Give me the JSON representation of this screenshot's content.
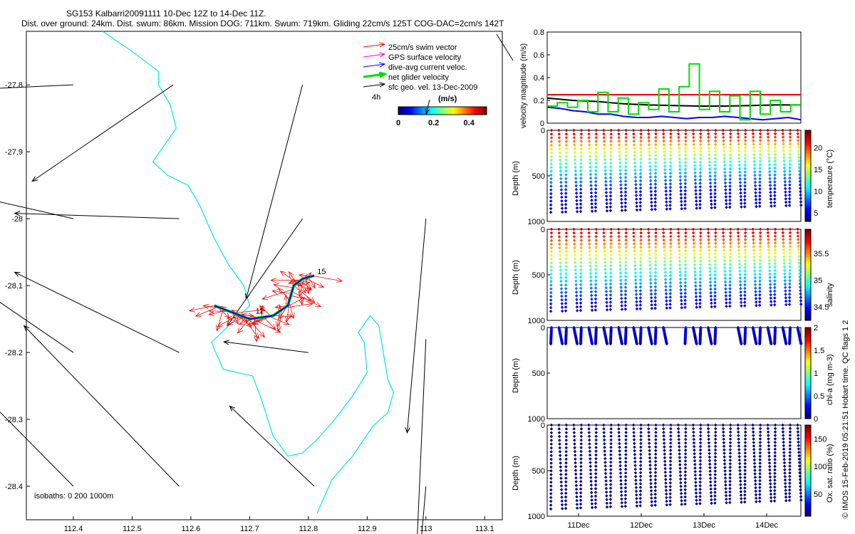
{
  "header": {
    "line1": "SG153 Kalbarri20091111 10-Dec 12Z to 14-Dec 11Z.",
    "line2": "Dist. over ground: 24km. Dist. swum: 86km. Mission DOG: 711km. Swum: 719km. Gliding 22cm/s 125T COG-DAC=2cm/s 142T"
  },
  "side_note": "© IMOS 15-Feb-2019 05:21:51 Hobart time. QC flags 1 2",
  "chart_data": [
    {
      "type": "map",
      "x_ticks": [
        "112.4",
        "112.5",
        "112.6",
        "112.7",
        "112.8",
        "112.9",
        "113",
        "113.1"
      ],
      "y_ticks": [
        "-27.8",
        "-27.9",
        "-28",
        "-28.1",
        "-28.2",
        "-28.3",
        "-28.4"
      ],
      "xlim": [
        112.32,
        113.13
      ],
      "ylim": [
        -28.45,
        -27.72
      ],
      "legend": [
        {
          "label": "25cm/s swim vector",
          "color": "#ff0000"
        },
        {
          "label": "GPS surface velocity",
          "color": "#ff00ff"
        },
        {
          "label": "dive-avg current veloc.",
          "color": "#0000ff"
        },
        {
          "label": "net glider velocity",
          "color": "#00dd00"
        },
        {
          "label": "sfc geo. vel. 13-Dec-2009",
          "color": "#000000"
        }
      ],
      "time_label": "4h",
      "colorbar": {
        "title": "(m/s)",
        "ticks": [
          "0",
          "0.2",
          "0.4"
        ],
        "range": [
          0,
          0.5
        ]
      },
      "isobaths_label": "isobaths: 0   200  1000m",
      "track_labels": [
        "15",
        "11"
      ],
      "track": [
        [
          112.64,
          -28.13
        ],
        [
          112.67,
          -28.14
        ],
        [
          112.7,
          -28.15
        ],
        [
          112.74,
          -28.145
        ],
        [
          112.765,
          -28.13
        ],
        [
          112.775,
          -28.1
        ],
        [
          112.79,
          -28.09
        ],
        [
          112.81,
          -28.085
        ]
      ],
      "isobath_200": [
        [
          112.45,
          -27.72
        ],
        [
          112.5,
          -27.75
        ],
        [
          112.545,
          -27.78
        ],
        [
          112.545,
          -27.8
        ],
        [
          112.565,
          -27.83
        ],
        [
          112.575,
          -27.865
        ],
        [
          112.555,
          -27.89
        ],
        [
          112.535,
          -27.915
        ],
        [
          112.56,
          -27.935
        ],
        [
          112.595,
          -27.95
        ],
        [
          112.615,
          -27.98
        ],
        [
          112.64,
          -28.03
        ],
        [
          112.665,
          -28.07
        ],
        [
          112.69,
          -28.1
        ],
        [
          112.7,
          -28.13
        ],
        [
          112.67,
          -28.155
        ],
        [
          112.635,
          -28.185
        ],
        [
          112.655,
          -28.225
        ],
        [
          112.705,
          -28.235
        ],
        [
          112.72,
          -28.27
        ],
        [
          112.74,
          -28.325
        ],
        [
          112.765,
          -28.355
        ],
        [
          112.79,
          -28.35
        ],
        [
          112.815,
          -28.33
        ],
        [
          112.845,
          -28.3
        ],
        [
          112.875,
          -28.265
        ],
        [
          112.9,
          -28.23
        ],
        [
          112.895,
          -28.185
        ],
        [
          112.885,
          -28.17
        ],
        [
          112.905,
          -28.145
        ],
        [
          112.92,
          -28.16
        ],
        [
          112.935,
          -28.24
        ],
        [
          112.945,
          -28.26
        ],
        [
          112.935,
          -28.29
        ],
        [
          112.91,
          -28.31
        ],
        [
          112.875,
          -28.355
        ],
        [
          112.84,
          -28.39
        ],
        [
          112.815,
          -28.44
        ]
      ],
      "geo_vectors": [
        {
          "x": 112.4,
          "y": -27.8,
          "u": -0.05,
          "v": -0.002
        },
        {
          "x": 112.57,
          "y": -27.8,
          "u": -0.03,
          "v": -0.018
        },
        {
          "x": 112.79,
          "y": -27.8,
          "u": -0.012,
          "v": -0.04
        },
        {
          "x": 112.4,
          "y": -28.0,
          "u": -0.05,
          "v": 0.01
        },
        {
          "x": 112.58,
          "y": -28.0,
          "u": -0.035,
          "v": 0.001
        },
        {
          "x": 112.79,
          "y": -28.0,
          "u": -0.016,
          "v": -0.02
        },
        {
          "x": 113.0,
          "y": -28.0,
          "u": -0.004,
          "v": -0.04
        },
        {
          "x": 112.4,
          "y": -28.2,
          "u": -0.05,
          "v": 0.03
        },
        {
          "x": 112.58,
          "y": -28.2,
          "u": -0.035,
          "v": 0.015
        },
        {
          "x": 112.8,
          "y": -28.2,
          "u": -0.018,
          "v": 0.002
        },
        {
          "x": 113.0,
          "y": -28.18,
          "u": -0.002,
          "v": -0.04
        },
        {
          "x": 112.4,
          "y": -28.4,
          "u": -0.045,
          "v": 0.04
        },
        {
          "x": 112.58,
          "y": -28.4,
          "u": -0.033,
          "v": 0.03
        },
        {
          "x": 112.81,
          "y": -28.4,
          "u": -0.018,
          "v": 0.015
        },
        {
          "x": 113.0,
          "y": -28.4,
          "u": -0.001,
          "v": -0.01
        }
      ]
    },
    {
      "type": "line",
      "ylabel": "velocity magnitude (m/s)",
      "ylim": [
        0,
        0.8
      ],
      "y_ticks": [
        "0",
        "0.2",
        "0.4",
        "0.6",
        "0.8"
      ],
      "xlim": [
        0,
        1
      ],
      "series": [
        {
          "color": "#ff0000",
          "x": [
            0,
            1
          ],
          "y": [
            0.25,
            0.25
          ]
        },
        {
          "color": "#000000",
          "x": [
            0,
            0.1,
            0.2,
            0.3,
            0.4,
            0.5,
            0.6,
            0.7,
            0.8,
            0.9,
            1
          ],
          "y": [
            0.22,
            0.2,
            0.19,
            0.17,
            0.16,
            0.155,
            0.15,
            0.15,
            0.155,
            0.16,
            0.16
          ]
        },
        {
          "color": "#0000ff",
          "x": [
            0,
            0.05,
            0.1,
            0.15,
            0.2,
            0.25,
            0.3,
            0.35,
            0.4,
            0.45,
            0.5,
            0.55,
            0.6,
            0.65,
            0.7,
            0.75,
            0.8,
            0.85,
            0.9,
            0.95,
            1
          ],
          "y": [
            0.14,
            0.13,
            0.11,
            0.1,
            0.08,
            0.08,
            0.06,
            0.05,
            0.05,
            0.06,
            0.05,
            0.04,
            0.05,
            0.05,
            0.06,
            0.05,
            0.04,
            0.03,
            0.04,
            0.05,
            0.03
          ]
        },
        {
          "color": "#00dd00",
          "x": [
            0,
            0.04,
            0.04,
            0.08,
            0.08,
            0.12,
            0.12,
            0.16,
            0.16,
            0.2,
            0.2,
            0.24,
            0.24,
            0.28,
            0.28,
            0.32,
            0.32,
            0.36,
            0.36,
            0.4,
            0.4,
            0.44,
            0.44,
            0.48,
            0.48,
            0.52,
            0.52,
            0.56,
            0.56,
            0.6,
            0.6,
            0.64,
            0.64,
            0.68,
            0.68,
            0.72,
            0.72,
            0.76,
            0.76,
            0.8,
            0.8,
            0.84,
            0.84,
            0.88,
            0.88,
            0.92,
            0.92,
            0.96,
            0.96,
            1
          ],
          "y": [
            0.15,
            0.15,
            0.18,
            0.18,
            0.14,
            0.14,
            0.2,
            0.2,
            0.1,
            0.1,
            0.27,
            0.27,
            0.1,
            0.1,
            0.22,
            0.22,
            0.08,
            0.08,
            0.18,
            0.18,
            0.12,
            0.12,
            0.3,
            0.3,
            0.1,
            0.1,
            0.32,
            0.32,
            0.52,
            0.52,
            0.12,
            0.12,
            0.28,
            0.28,
            0.1,
            0.1,
            0.24,
            0.24,
            0.03,
            0.03,
            0.28,
            0.28,
            0.08,
            0.08,
            0.2,
            0.2,
            0.1,
            0.1,
            0.16,
            0.16
          ]
        }
      ]
    },
    {
      "type": "scatter",
      "ylabel": "Depth (m)",
      "clabel": "temperature (°C)",
      "ylim": [
        0,
        1000
      ],
      "y_ticks": [
        "0",
        "500",
        "1000"
      ],
      "cbar_ticks": [
        "5",
        "10",
        "15",
        "20"
      ],
      "crange": [
        3,
        24
      ],
      "dives": 34,
      "max_depth": [
        900,
        820
      ],
      "surface_value": 23,
      "deep_value": 4,
      "palette": "jet"
    },
    {
      "type": "scatter",
      "ylabel": "Depth (m)",
      "clabel": "salinity",
      "ylim": [
        0,
        1000
      ],
      "y_ticks": [
        "0",
        "500",
        "1000"
      ],
      "cbar_ticks": [
        "34.5",
        "35",
        "35.5"
      ],
      "crange": [
        34.25,
        35.95
      ],
      "dives": 34,
      "max_depth": [
        900,
        820
      ],
      "surface_value": 35.85,
      "deep_value": 34.4,
      "palette": "jet"
    },
    {
      "type": "scatter",
      "ylabel": "Depth (m)",
      "clabel": "chl-a (mg m-3)",
      "ylim": [
        0,
        1000
      ],
      "y_ticks": [
        "0",
        "500",
        "1000"
      ],
      "cbar_ticks": [
        "0",
        "0.5",
        "1",
        "1.5",
        "2"
      ],
      "crange": [
        0,
        2
      ],
      "dives": 34,
      "max_depth": [
        180,
        180
      ],
      "surface_value": 0.3,
      "deep_value": 0.05,
      "palette": "jet",
      "gaps": [
        [
          0.47,
          0.52
        ],
        [
          0.66,
          0.72
        ]
      ]
    },
    {
      "type": "scatter",
      "ylabel": "Depth (m)",
      "clabel": "Ox. sat. ratio (%)",
      "ylim": [
        0,
        1000
      ],
      "y_ticks": [
        "0",
        "500",
        "1000"
      ],
      "cbar_ticks": [
        "50",
        "100",
        "150"
      ],
      "crange": [
        10,
        175
      ],
      "dives": 34,
      "max_depth": [
        920,
        820
      ],
      "surface_value": 12,
      "deep_value": 12,
      "palette": "jet",
      "x_ticks": [
        "11Dec",
        "12Dec",
        "13Dec",
        "14Dec"
      ]
    }
  ]
}
